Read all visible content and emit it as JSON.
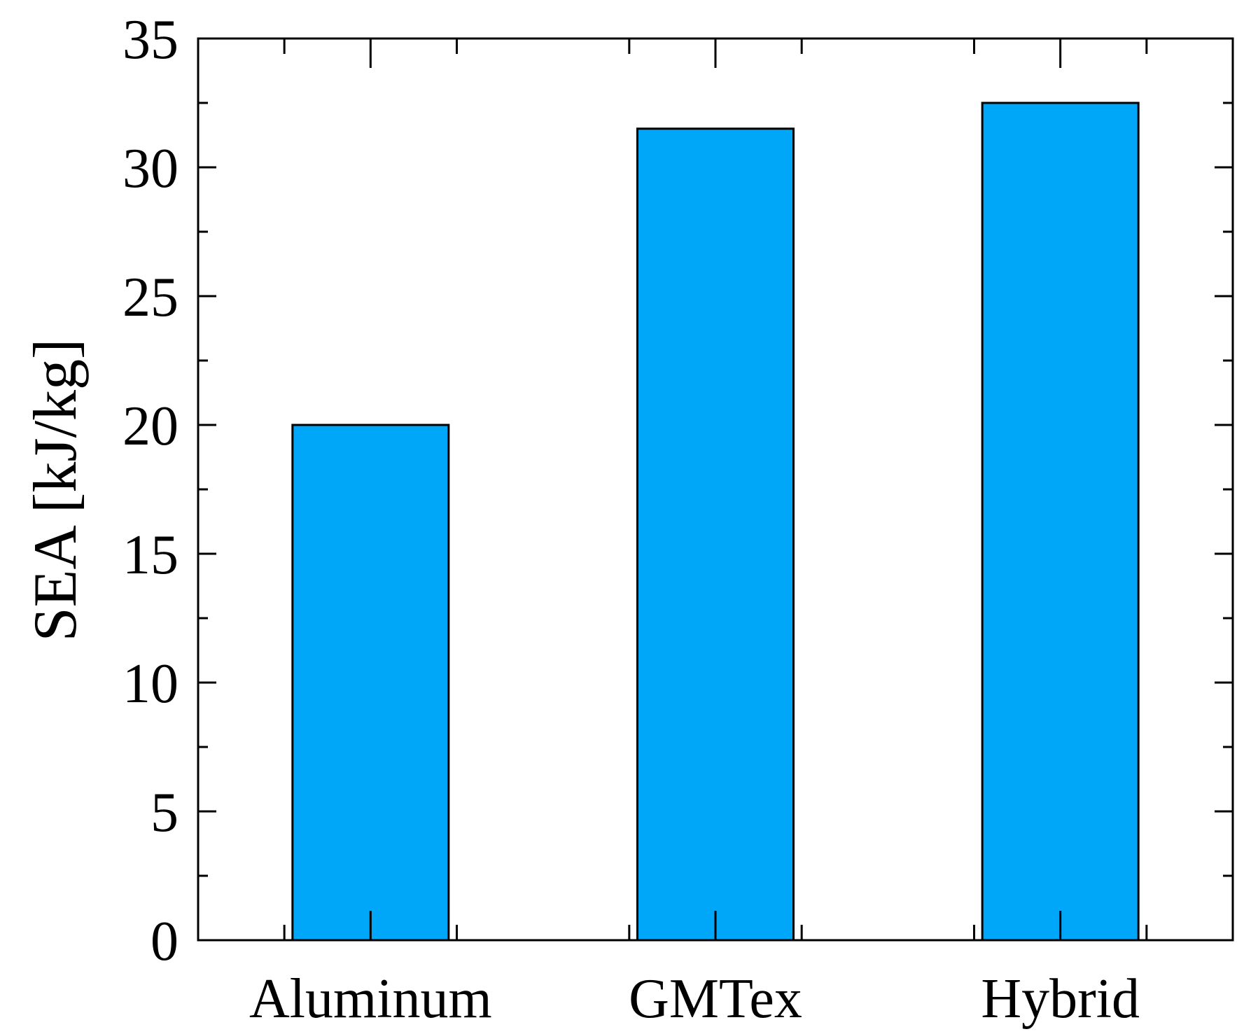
{
  "chart_data": {
    "type": "bar",
    "title": "",
    "xlabel": "",
    "ylabel": "SEA [kJ/kg]",
    "categories": [
      "Aluminum",
      "GMTex",
      "Hybrid"
    ],
    "values": [
      20.0,
      31.5,
      32.5
    ],
    "ylim": [
      0,
      35
    ],
    "yticks": [
      0,
      5,
      10,
      15,
      20,
      25,
      30,
      35
    ],
    "yminor_step": 2.5,
    "grid": false,
    "legend": "none",
    "colors": {
      "bar_fill": "#00A6F8",
      "bar_stroke": "#000000",
      "axis": "#000000"
    }
  }
}
